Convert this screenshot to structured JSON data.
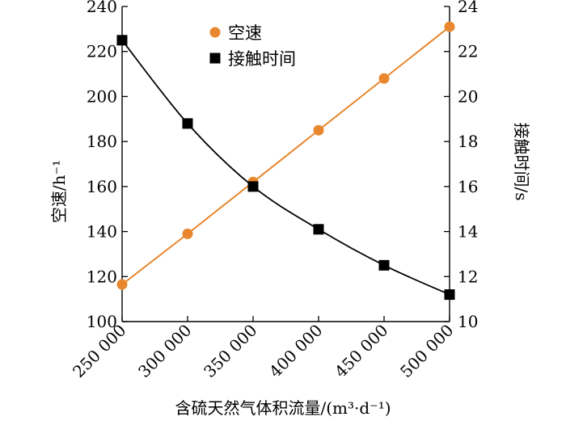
{
  "chart_data": {
    "type": "line",
    "x": [
      250000,
      300000,
      350000,
      400000,
      450000,
      500000
    ],
    "x_tick_labels": [
      "250 000",
      "300 000",
      "350 000",
      "400 000",
      "450 000",
      "500 000"
    ],
    "xlim": [
      250000,
      500000
    ],
    "xlabel": "含硫天然气体积流量/(m³·d⁻¹)",
    "ylabel_left": "空速/h⁻¹",
    "ylabel_right": "接触时间/s",
    "ylim_left": [
      100,
      240
    ],
    "ylim_right": [
      10,
      24
    ],
    "y_ticks_left": [
      100,
      120,
      140,
      160,
      180,
      200,
      220,
      240
    ],
    "y_ticks_right": [
      10,
      12,
      14,
      16,
      18,
      20,
      22,
      24
    ],
    "grid": false,
    "legend_position": "top-center",
    "series": [
      {
        "name": "空速",
        "axis": "left",
        "marker": "circle",
        "color": "#E8872E",
        "values": [
          116.5,
          139,
          162,
          185,
          208,
          231
        ]
      },
      {
        "name": "接触时间",
        "axis": "right",
        "marker": "square",
        "color": "#000000",
        "values": [
          22.5,
          18.8,
          16.0,
          14.1,
          12.5,
          11.2
        ]
      }
    ]
  }
}
